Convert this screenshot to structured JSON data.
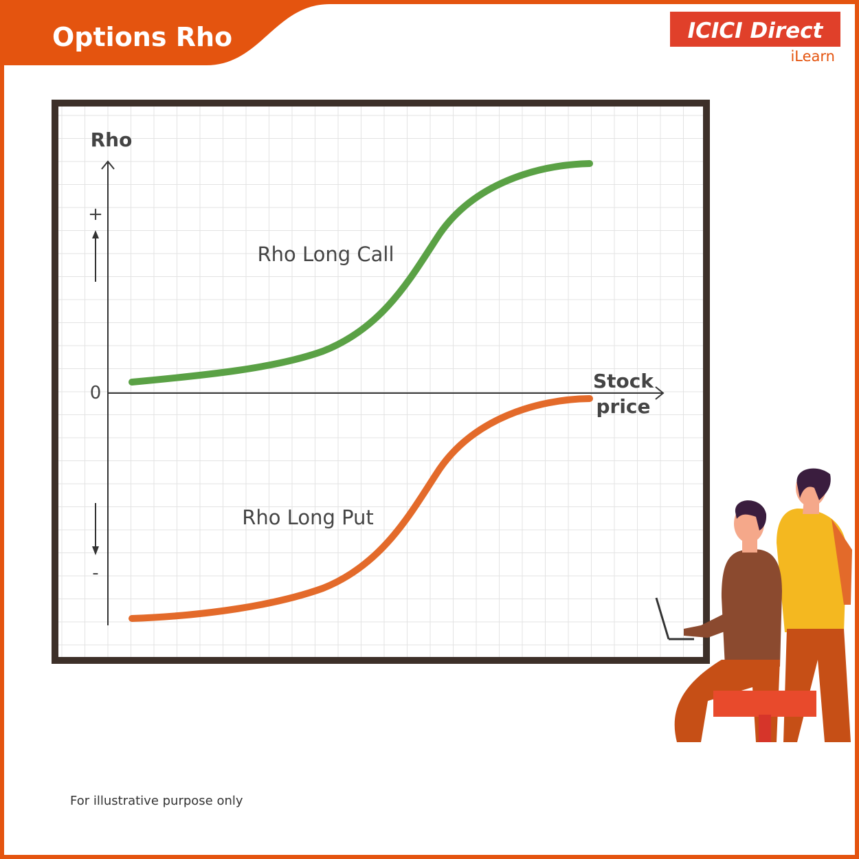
{
  "header": {
    "title": "Options Rho",
    "brand": "ICICI Direct",
    "sub_brand": "iLearn"
  },
  "diagram": {
    "y_axis_label": "Rho",
    "plus_sign": "+",
    "zero_label": "0",
    "minus_sign": "-",
    "x_axis_label_lines": [
      "Stock",
      "price"
    ],
    "curves": [
      {
        "label": "Rho Long Call"
      },
      {
        "label": "Rho Long Put"
      }
    ]
  },
  "footer": {
    "note": "For illustrative purpose only"
  }
}
